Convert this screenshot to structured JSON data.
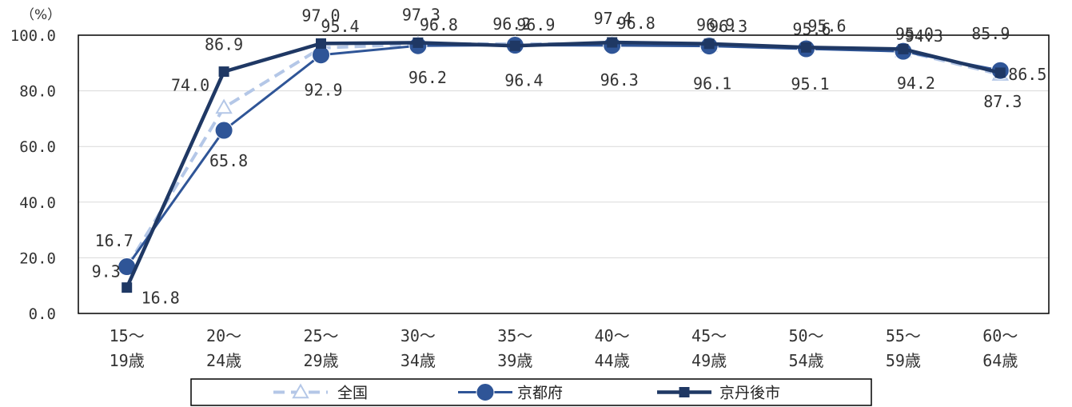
{
  "chart_data": {
    "type": "line",
    "unit_label": "（%）",
    "ylim": [
      0,
      100
    ],
    "yticks": [
      "0.0",
      "20.0",
      "40.0",
      "60.0",
      "80.0",
      "100.0"
    ],
    "grid": true,
    "legend_position": "bottom",
    "categories": [
      {
        "line1": "15～",
        "line2": "19歳"
      },
      {
        "line1": "20～",
        "line2": "24歳"
      },
      {
        "line1": "25～",
        "line2": "29歳"
      },
      {
        "line1": "30～",
        "line2": "34歳"
      },
      {
        "line1": "35～",
        "line2": "39歳"
      },
      {
        "line1": "40～",
        "line2": "44歳"
      },
      {
        "line1": "45～",
        "line2": "49歳"
      },
      {
        "line1": "50～",
        "line2": "54歳"
      },
      {
        "line1": "55～",
        "line2": "59歳"
      },
      {
        "line1": "60～",
        "line2": "64歳"
      }
    ],
    "series": [
      {
        "name": "全国",
        "color": "#b4c7e7",
        "marker": "triangle",
        "dashed": true,
        "values": [
          16.7,
          74.0,
          95.4,
          96.8,
          96.9,
          96.8,
          96.3,
          95.6,
          94.3,
          85.9
        ],
        "labels": [
          "16.7",
          "74.0",
          "95.4",
          "96.8",
          "96.9",
          "96.8",
          "96.3",
          "95.6",
          "94.3",
          "85.9"
        ]
      },
      {
        "name": "京都府",
        "color": "#2f5597",
        "marker": "circle",
        "dashed": false,
        "values": [
          16.8,
          65.8,
          92.9,
          96.2,
          96.4,
          96.3,
          96.1,
          95.1,
          94.2,
          87.3
        ],
        "labels": [
          "16.8",
          "65.8",
          "92.9",
          "96.2",
          "96.4",
          "96.3",
          "96.1",
          "95.1",
          "94.2",
          "87.3"
        ]
      },
      {
        "name": "京丹後市",
        "color": "#1f3864",
        "marker": "square",
        "dashed": false,
        "values": [
          9.3,
          86.9,
          97.0,
          97.3,
          96.2,
          97.4,
          96.9,
          95.6,
          95.0,
          86.5
        ],
        "labels": [
          "9.3",
          "86.9",
          "97.0",
          "97.3",
          "96.2",
          "97.4",
          "96.9",
          "95.6",
          "95.0",
          "86.5"
        ]
      }
    ]
  }
}
